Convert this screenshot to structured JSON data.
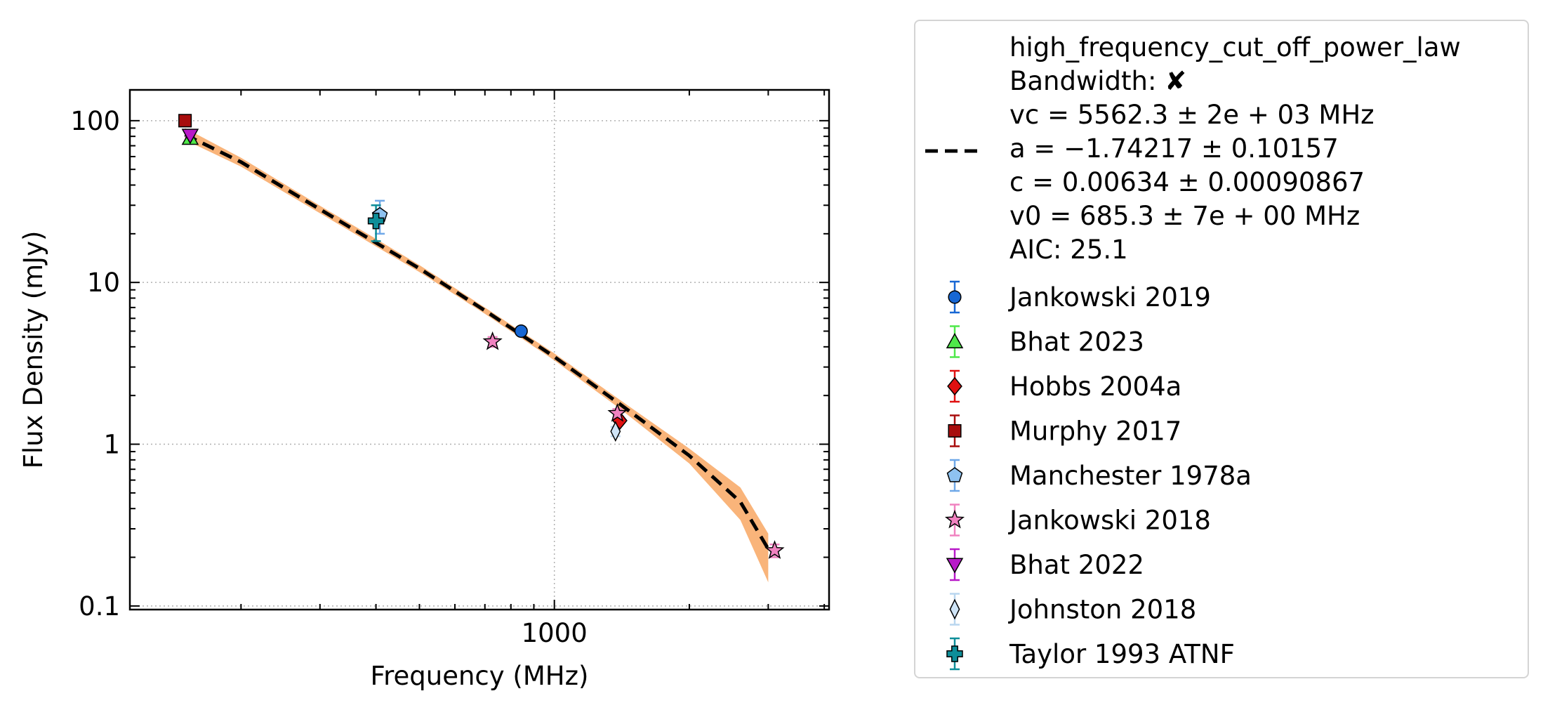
{
  "chart_data": {
    "type": "scatter",
    "title": "",
    "xlabel": "Frequency (MHz)",
    "ylabel": "Flux Density (mJy)",
    "xscale": "log",
    "yscale": "log",
    "xlim": [
      113,
      4100
    ],
    "ylim": [
      0.095,
      155
    ],
    "x_ticklabels": [
      {
        "value": 1000,
        "label": "1000"
      }
    ],
    "y_ticklabels": [
      {
        "value": 0.1,
        "label": "0.1"
      },
      {
        "value": 1,
        "label": "1"
      },
      {
        "value": 10,
        "label": "10"
      },
      {
        "value": 100,
        "label": "100"
      }
    ],
    "grid": true,
    "legend_placement": "outside right",
    "fit": {
      "name": "high_frequency_cut_off_power_law",
      "color": "#000000",
      "band_color": "#f9b47a",
      "style": "dashed",
      "x": [
        150,
        200,
        300,
        400,
        500,
        700,
        1000,
        1400,
        2000,
        2600,
        3000
      ],
      "y": [
        82,
        55.5,
        28.3,
        17.6,
        12.2,
        6.7,
        3.47,
        1.77,
        0.85,
        0.44,
        0.225
      ],
      "band_lower": [
        76,
        52,
        26.8,
        16.7,
        11.6,
        6.4,
        3.3,
        1.66,
        0.76,
        0.34,
        0.14
      ],
      "band_upper": [
        90,
        59,
        29.8,
        18.6,
        12.8,
        7.0,
        3.64,
        1.88,
        0.94,
        0.54,
        0.28
      ]
    },
    "fit_legend_lines": [
      "high_frequency_cut_off_power_law",
      "Bandwidth: ✘",
      "vc = 5562.3 ± 2e + 03 MHz",
      "a = −1.74217 ± 0.10157",
      "c = 0.00634 ± 0.00090867",
      "v0 = 685.3 ± 7e + 00 MHz",
      "AIC: 25.1"
    ],
    "series": [
      {
        "name": "Jankowski 2019",
        "marker": "circle",
        "color": "#1767d4",
        "err_color": "#1767d4",
        "points": [
          {
            "x": 843,
            "y": 5.0,
            "yerr": 0
          }
        ]
      },
      {
        "name": "Bhat 2023",
        "marker": "triangle-up",
        "color": "#4fe84a",
        "err_color": "#4fe84a",
        "points": [
          {
            "x": 154,
            "y": 78,
            "yerr": 3
          }
        ]
      },
      {
        "name": "Hobbs 2004a",
        "marker": "diamond",
        "color": "#e01010",
        "err_color": "#e01010",
        "points": [
          {
            "x": 1400,
            "y": 1.4,
            "yerr": 0.05
          }
        ]
      },
      {
        "name": "Murphy 2017",
        "marker": "square",
        "color": "#a80d0d",
        "err_color": "#a80d0d",
        "points": [
          {
            "x": 150,
            "y": 100,
            "yerr": 4
          }
        ]
      },
      {
        "name": "Manchester 1978a",
        "marker": "pentagon",
        "color": "#8ec2f0",
        "err_color": "#6fa8e8",
        "points": [
          {
            "x": 408,
            "y": 26,
            "yerr": 6
          }
        ]
      },
      {
        "name": "Jankowski 2018",
        "marker": "star",
        "color": "#f082c0",
        "err_color": "#f082c0",
        "points": [
          {
            "x": 728,
            "y": 4.3,
            "yerr": 0.3
          },
          {
            "x": 1382,
            "y": 1.55,
            "yerr": 0.1
          },
          {
            "x": 3100,
            "y": 0.22,
            "yerr": 0.02
          }
        ]
      },
      {
        "name": "Bhat 2022",
        "marker": "triangle-down",
        "color": "#b81ac8",
        "err_color": "#b81ac8",
        "points": [
          {
            "x": 154,
            "y": 81,
            "yerr": 2
          }
        ]
      },
      {
        "name": "Johnston 2018",
        "marker": "thin-diamond",
        "color": "#cfe4f6",
        "err_color": "#b9d6ef",
        "points": [
          {
            "x": 1369,
            "y": 1.2,
            "yerr": 0.08
          }
        ]
      },
      {
        "name": "Taylor 1993 ATNF",
        "marker": "plus",
        "color": "#0e8e99",
        "err_color": "#0e8e99",
        "points": [
          {
            "x": 400,
            "y": 24,
            "yerr": 6
          }
        ]
      }
    ]
  }
}
